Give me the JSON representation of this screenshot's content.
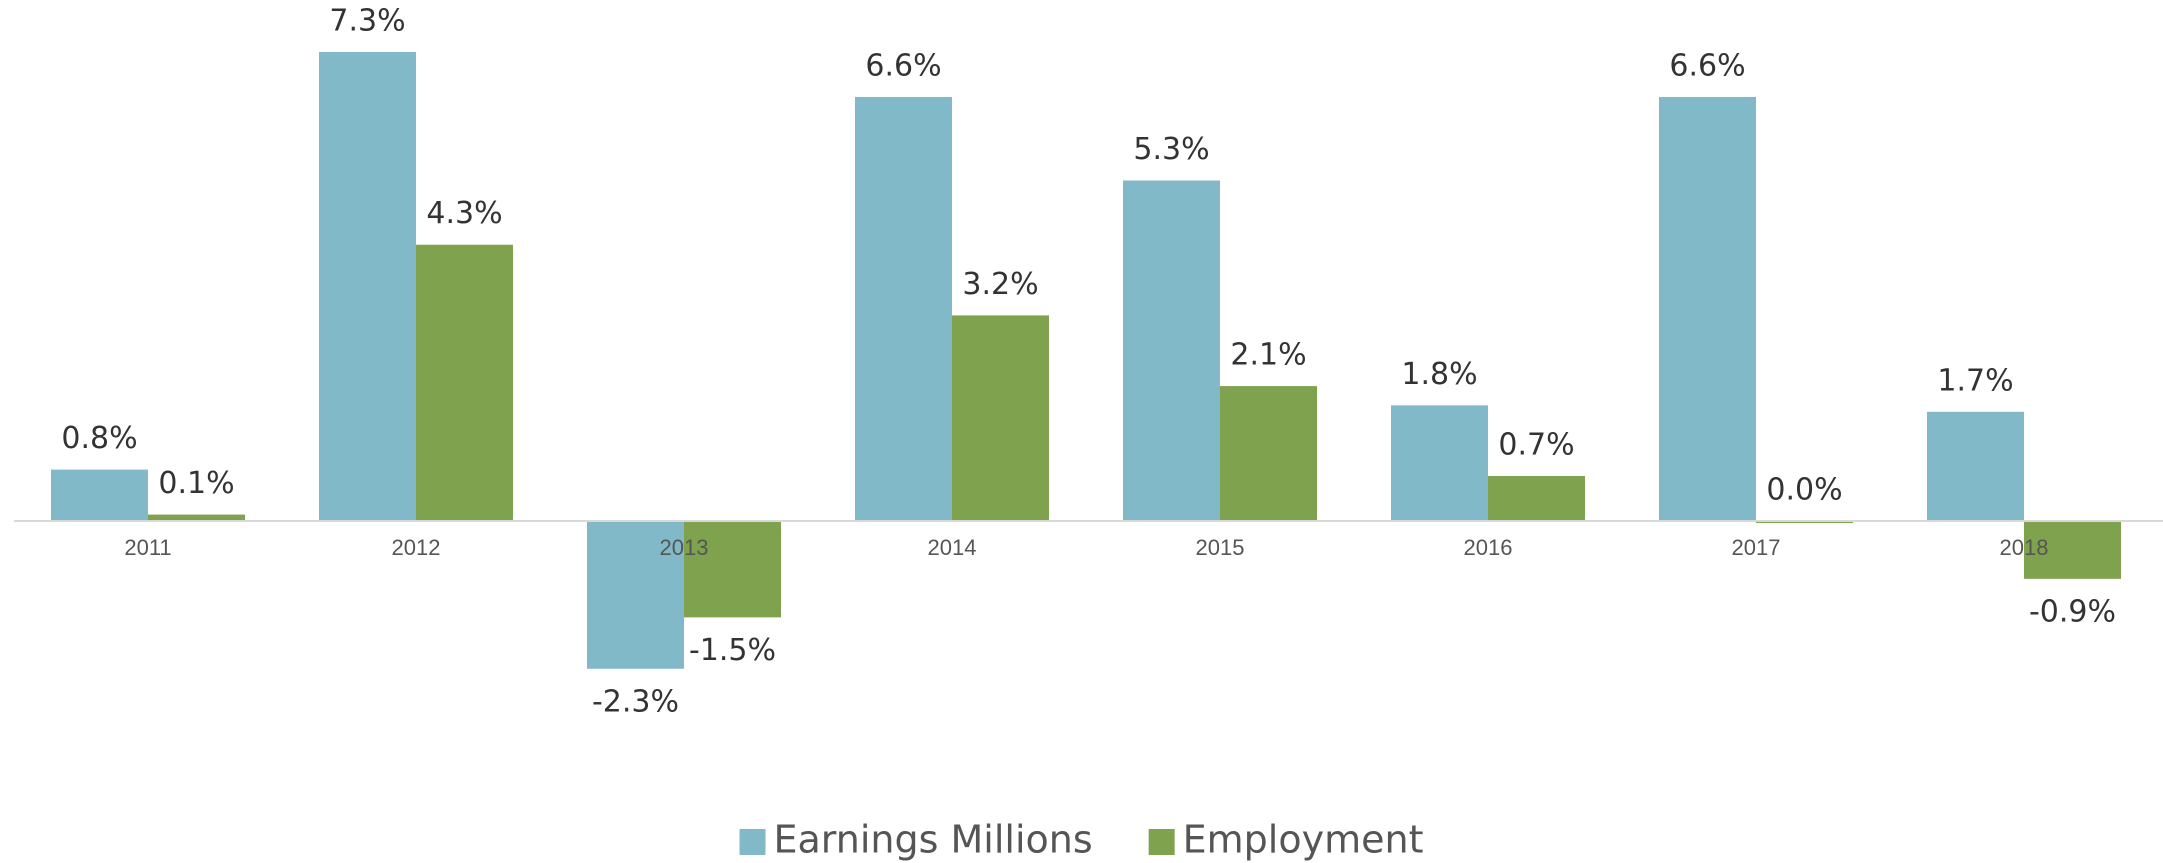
{
  "chart_data": {
    "type": "bar",
    "categories": [
      "2011",
      "2012",
      "2013",
      "2014",
      "2015",
      "2016",
      "2017",
      "2018"
    ],
    "series": [
      {
        "name": "Earnings Millions",
        "color": "#82b9c9",
        "values": [
          0.8,
          7.3,
          -2.3,
          6.6,
          5.3,
          1.8,
          6.6,
          1.7
        ],
        "value_labels": [
          "0.8%",
          "7.3%",
          "-2.3%",
          "6.6%",
          "5.3%",
          "1.8%",
          "6.6%",
          "1.7%"
        ]
      },
      {
        "name": "Employment",
        "color": "#7fa24e",
        "values": [
          0.1,
          4.3,
          -1.5,
          3.2,
          2.1,
          0.7,
          0.0,
          -0.9
        ],
        "value_labels": [
          "0.1%",
          "4.3%",
          "-1.5%",
          "3.2%",
          "2.1%",
          "0.7%",
          "0.0%",
          "-0.9%"
        ]
      }
    ],
    "legend": "bottom"
  }
}
